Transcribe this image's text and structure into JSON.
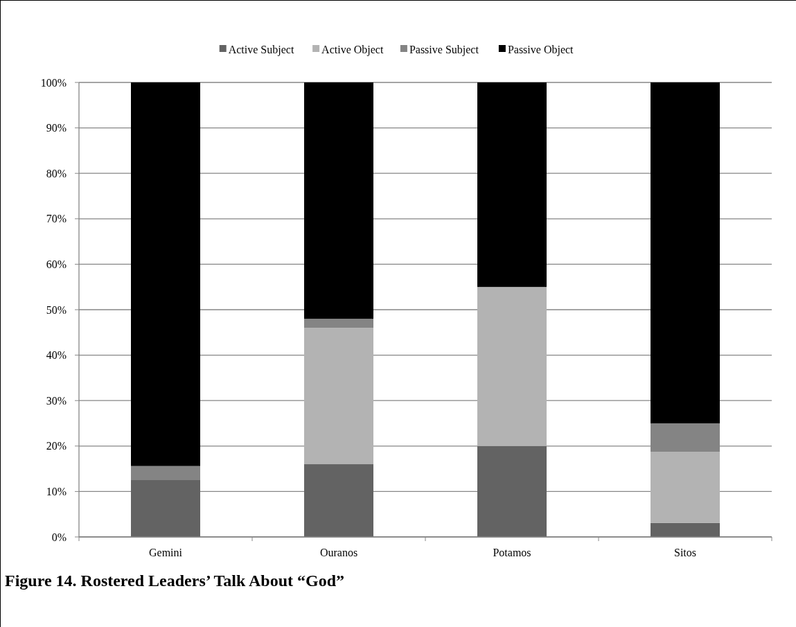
{
  "chart_data": {
    "type": "bar",
    "stacked": true,
    "title": "Figure 14. Rostered Leaders’ Talk About “God”",
    "categories": [
      "Gemini",
      "Ouranos",
      "Potamos",
      "Sitos"
    ],
    "series": [
      {
        "name": "Active Subject",
        "color": "#636363",
        "values": [
          12.5,
          16,
          20,
          3.1
        ]
      },
      {
        "name": "Active Object",
        "color": "#b3b3b3",
        "values": [
          0,
          30,
          35,
          15.6
        ]
      },
      {
        "name": "Passive Subject",
        "color": "#848484",
        "values": [
          3.1,
          2,
          0,
          6.3
        ]
      },
      {
        "name": "Passive Object",
        "color": "#000000",
        "values": [
          84.4,
          52,
          45,
          75
        ]
      }
    ],
    "ylim": [
      0,
      100
    ],
    "yticks": [
      {
        "value": 0,
        "label": "0%"
      },
      {
        "value": 10,
        "label": "10%"
      },
      {
        "value": 20,
        "label": "20%"
      },
      {
        "value": 30,
        "label": "30%"
      },
      {
        "value": 40,
        "label": "40%"
      },
      {
        "value": 50,
        "label": "50%"
      },
      {
        "value": 60,
        "label": "60%"
      },
      {
        "value": 70,
        "label": "70%"
      },
      {
        "value": 80,
        "label": "80%"
      },
      {
        "value": 90,
        "label": "90%"
      },
      {
        "value": 100,
        "label": "100%"
      }
    ],
    "grid": "y",
    "legend": "top"
  }
}
